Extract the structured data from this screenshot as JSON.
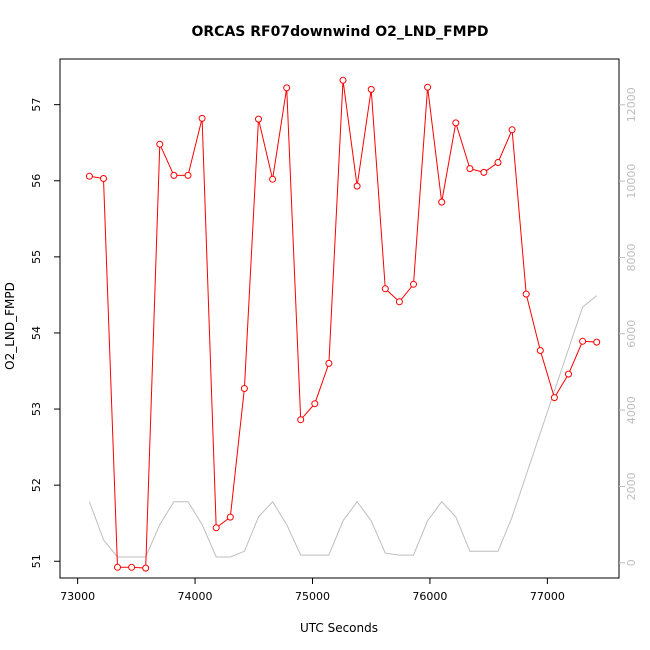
{
  "chart_data": {
    "type": "line",
    "title": "ORCAS RF07downwind O2_LND_FMPD",
    "xlabel": "UTC Seconds",
    "ylabel": "O2_LND_FMPD",
    "xlim": [
      72850,
      77610
    ],
    "ylim": [
      50.78,
      57.6
    ],
    "y2lim": [
      -400,
      13200
    ],
    "x_ticks": [
      73000,
      74000,
      75000,
      76000,
      77000
    ],
    "y_ticks": [
      51,
      52,
      53,
      54,
      55,
      56,
      57
    ],
    "y2_ticks": [
      0,
      2000,
      4000,
      6000,
      8000,
      10000,
      12000
    ],
    "grid": false,
    "colors": {
      "primary": "#ff0000",
      "secondary": "#bebebe"
    },
    "series": [
      {
        "values_x": [
          73100,
          73220,
          73340,
          73460,
          73580,
          73700,
          73820,
          73940,
          74060,
          74180,
          74300,
          74420,
          74540,
          74660,
          74780,
          74900,
          75020,
          75140,
          75260,
          75380,
          75500,
          75620,
          75740,
          75860,
          75980,
          76100,
          76220,
          76340,
          76460,
          76580,
          76700,
          76820,
          76940,
          77060,
          77180,
          77300,
          77420
        ],
        "values_y": [
          56.06,
          56.03,
          50.92,
          50.92,
          50.91,
          56.48,
          56.07,
          56.07,
          56.82,
          51.44,
          51.58,
          53.27,
          56.81,
          56.02,
          57.22,
          52.86,
          53.07,
          53.6,
          57.32,
          55.93,
          57.2,
          54.58,
          54.41,
          54.64,
          57.23,
          55.72,
          56.76,
          56.16,
          56.11,
          56.24,
          56.67,
          54.51,
          53.77,
          53.15,
          53.46,
          53.89,
          53.88
        ]
      },
      {
        "values_x": [
          73100,
          73220,
          73340,
          73460,
          73580,
          73700,
          73820,
          73940,
          74060,
          74180,
          74300,
          74420,
          74540,
          74660,
          74780,
          74900,
          75020,
          75140,
          75260,
          75380,
          75500,
          75620,
          75740,
          75860,
          75980,
          76100,
          76220,
          76340,
          76460,
          76580,
          76700,
          76820,
          76940,
          77060,
          77180,
          77300,
          77420
        ],
        "values_y": [
          1600,
          600,
          150,
          150,
          150,
          1000,
          1600,
          1600,
          1000,
          150,
          150,
          300,
          1200,
          1600,
          1000,
          200,
          200,
          200,
          1100,
          1600,
          1100,
          250,
          200,
          200,
          1100,
          1600,
          1200,
          300,
          300,
          300,
          1200,
          2300,
          3400,
          4500,
          5600,
          6700,
          7000
        ]
      }
    ]
  }
}
